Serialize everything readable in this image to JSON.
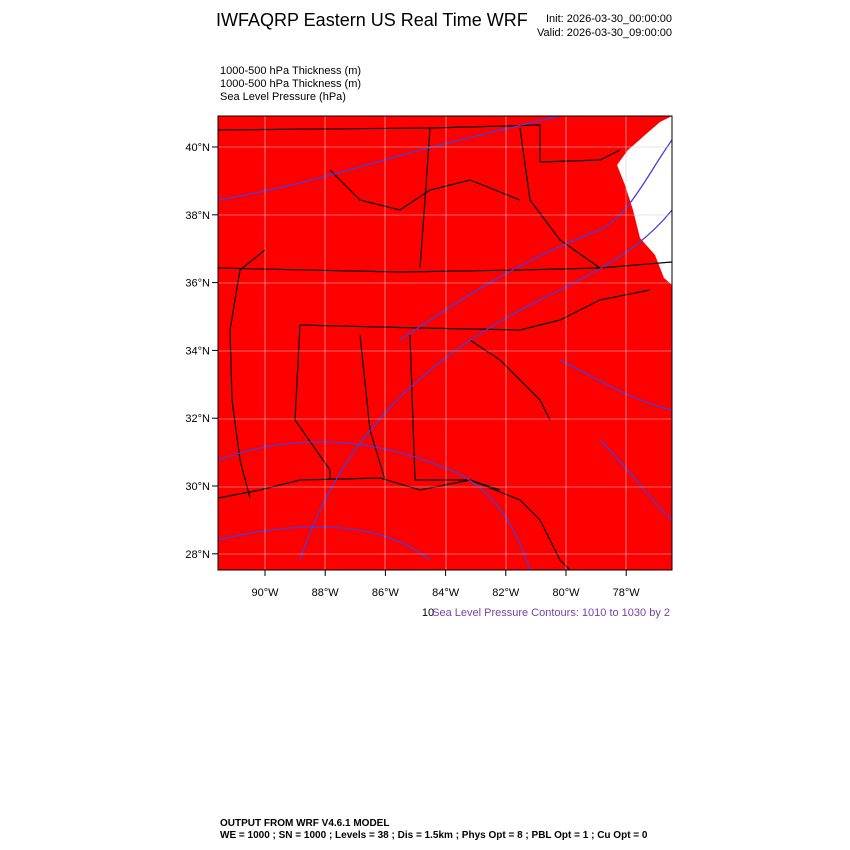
{
  "header": {
    "title": "IWFAQRP Eastern US Real Time WRF",
    "init": "Init: 2026-03-30_00:00:00",
    "valid": "Valid: 2026-03-30_09:00:00"
  },
  "fields": [
    "1000-500 hPa Thickness   (m)",
    "1000-500 hPa Thickness   (m)",
    "Sea Level Pressure   (hPa)"
  ],
  "map": {
    "lat_labels": [
      "40°N",
      "38°N",
      "36°N",
      "34°N",
      "32°N",
      "30°N",
      "28°N"
    ],
    "lon_labels": [
      "90°W",
      "88°W",
      "86°W",
      "84°W",
      "82°W",
      "80°W",
      "78°W"
    ]
  },
  "legend": {
    "number": "10",
    "text": "Sea Level Pressure Contours: 1010 to 1030 by 2"
  },
  "footer": {
    "line1": "OUTPUT FROM WRF V4.6.1 MODEL",
    "line2": "WE = 1000 ; SN = 1000 ; Levels = 38 ; Dis = 1.5km ; Phys Opt = 8 ; PBL Opt = 1 ; Cu Opt = 0"
  }
}
